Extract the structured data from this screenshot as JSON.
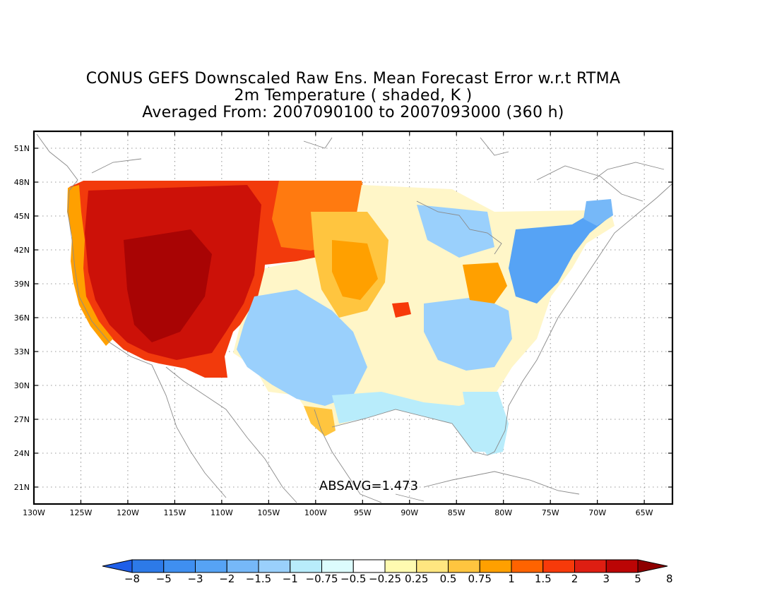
{
  "title": {
    "line1": "CONUS GEFS Downscaled Raw Ens. Mean Forecast Error w.r.t RTMA",
    "line2": "2m Temperature ( shaded, K )",
    "line3": "Averaged From: 2007090100 to 2007093000 (360 h)"
  },
  "map": {
    "lon_labels": [
      "130W",
      "125W",
      "120W",
      "115W",
      "110W",
      "105W",
      "100W",
      "95W",
      "90W",
      "85W",
      "80W",
      "75W",
      "70W",
      "65W"
    ],
    "lat_labels": [
      "51N",
      "48N",
      "45N",
      "42N",
      "39N",
      "36N",
      "33N",
      "30N",
      "27N",
      "24N",
      "21N"
    ],
    "lon_range": [
      -130,
      -62
    ],
    "lat_range": [
      19.5,
      52.5
    ],
    "grid": "dotted",
    "annotation": "ABSAVG=1.473"
  },
  "colorbar": {
    "labels": [
      "−8",
      "−5",
      "−3",
      "−2",
      "−1.5",
      "−1",
      "−0.75",
      "−0.5",
      "−0.25",
      "0.25",
      "0.5",
      "0.75",
      "1",
      "1.5",
      "2",
      "3",
      "5",
      "8"
    ],
    "colors": [
      "#1e5ee8",
      "#2d7ae8",
      "#3f8ff0",
      "#56a3f5",
      "#76b8f8",
      "#9ad0fc",
      "#b8ecfb",
      "#dcfcfd",
      "#ffffff",
      "#fffab0",
      "#ffe680",
      "#ffc53f",
      "#ffa000",
      "#ff6300",
      "#f73a0a",
      "#de1e12",
      "#bb0505",
      "#8e0000"
    ]
  },
  "chart_data": {
    "type": "heatmap",
    "title": "CONUS GEFS Downscaled Raw Ens. Mean Forecast Error w.r.t RTMA",
    "subtitle": "2m Temperature ( shaded, K ) — Averaged From: 2007090100 to 2007093000 (360 h)",
    "xlim": [
      -130,
      -62
    ],
    "ylim": [
      19.5,
      52.5
    ],
    "contour_levels": [
      -8,
      -5,
      -3,
      -2,
      -1.5,
      -1,
      -0.75,
      -0.5,
      -0.25,
      0.25,
      0.5,
      0.75,
      1,
      1.5,
      2,
      3,
      5,
      8
    ],
    "annotation": "ABSAVG=1.473"
  }
}
